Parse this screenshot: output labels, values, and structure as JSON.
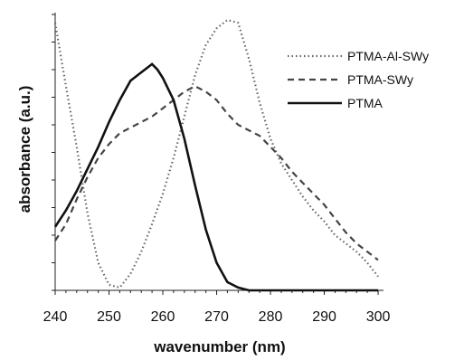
{
  "chart_data": {
    "type": "line",
    "title": "",
    "xlabel": "wavenumber (nm)",
    "ylabel": "absorbance (a.u.)",
    "xlim": [
      240,
      301
    ],
    "ylim": [
      0,
      1
    ],
    "x_ticks": [
      240,
      250,
      260,
      270,
      280,
      290,
      300
    ],
    "y_ticks_shown_as_labels": false,
    "grid": false,
    "legend": "top-right",
    "series": [
      {
        "name": "PTMA-Al-SWy",
        "style": "dotted-dense",
        "x": [
          240,
          242,
          244,
          246,
          248,
          250,
          252,
          254,
          256,
          258,
          260,
          262,
          264,
          266,
          268,
          270,
          272,
          274,
          276,
          278,
          280,
          282,
          284,
          286,
          288,
          290,
          292,
          294,
          296,
          298,
          300
        ],
        "y": [
          0.97,
          0.74,
          0.52,
          0.28,
          0.1,
          0.02,
          0.01,
          0.06,
          0.14,
          0.24,
          0.35,
          0.48,
          0.63,
          0.78,
          0.89,
          0.95,
          0.98,
          0.97,
          0.84,
          0.68,
          0.55,
          0.46,
          0.4,
          0.34,
          0.29,
          0.25,
          0.2,
          0.17,
          0.14,
          0.1,
          0.05
        ]
      },
      {
        "name": "PTMA-SWy",
        "style": "dashed",
        "x": [
          240,
          242,
          244,
          246,
          248,
          250,
          252,
          254,
          256,
          258,
          260,
          262,
          264,
          266,
          268,
          270,
          272,
          274,
          276,
          278,
          280,
          282,
          284,
          286,
          288,
          290,
          292,
          294,
          296,
          298,
          300
        ],
        "y": [
          0.18,
          0.24,
          0.33,
          0.41,
          0.48,
          0.53,
          0.57,
          0.59,
          0.61,
          0.63,
          0.66,
          0.69,
          0.72,
          0.74,
          0.72,
          0.69,
          0.64,
          0.6,
          0.58,
          0.56,
          0.52,
          0.48,
          0.43,
          0.39,
          0.35,
          0.31,
          0.26,
          0.21,
          0.17,
          0.14,
          0.11
        ]
      },
      {
        "name": "PTMA",
        "style": "solid",
        "x": [
          240,
          242,
          244,
          246,
          248,
          250,
          252,
          254,
          256,
          258,
          259,
          260,
          262,
          264,
          266,
          268,
          270,
          272,
          274,
          276,
          278,
          280,
          285,
          290,
          295,
          300
        ],
        "y": [
          0.23,
          0.29,
          0.36,
          0.44,
          0.52,
          0.61,
          0.69,
          0.76,
          0.79,
          0.82,
          0.8,
          0.77,
          0.69,
          0.55,
          0.38,
          0.22,
          0.1,
          0.03,
          0.01,
          0.0,
          0.0,
          0.0,
          0.0,
          0.0,
          0.0,
          0.0
        ]
      }
    ]
  }
}
